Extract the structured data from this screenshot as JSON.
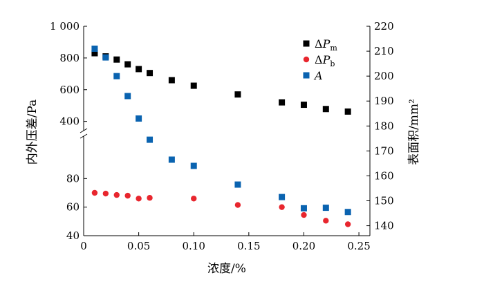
{
  "chart_data": {
    "type": "scatter",
    "title": "",
    "xlabel": "浓度/%",
    "ylabel_left": "内外压差/Pa",
    "ylabel_right": "表面积/mm²",
    "xlim": [
      0,
      0.26
    ],
    "x_ticks": [
      0,
      0.05,
      0.1,
      0.15,
      0.2,
      0.25
    ],
    "x_tick_labels": [
      "0",
      "0.05",
      "0.10",
      "0.15",
      "0.20",
      "0.25"
    ],
    "y_left_broken": true,
    "y_left_lower_range": [
      40,
      100
    ],
    "y_left_upper_range": [
      320,
      1000
    ],
    "y_left_ticks_lower": [
      40,
      60,
      80
    ],
    "y_left_ticks_upper": [
      400,
      600,
      800,
      1000
    ],
    "y_left_tick_labels": [
      "40",
      "60",
      "80",
      "400",
      "600",
      "800",
      "1 000"
    ],
    "y_right_range": [
      136,
      220
    ],
    "y_right_ticks": [
      140,
      150,
      160,
      170,
      180,
      190,
      200,
      210,
      220
    ],
    "y_right_tick_labels": [
      "140",
      "150",
      "160",
      "170",
      "180",
      "190",
      "200",
      "210",
      "220"
    ],
    "legend_position": "top-right",
    "legend": [
      {
        "symbol": "ΔP",
        "sub": "m",
        "marker": "square",
        "color": "#000000"
      },
      {
        "symbol": "ΔP",
        "sub": "b",
        "marker": "circle",
        "color": "#e8262e"
      },
      {
        "symbol": "A",
        "sub": "",
        "marker": "square",
        "color": "#0a63b0"
      }
    ],
    "series": [
      {
        "name": "ΔPm",
        "axis": "left",
        "marker": "square",
        "color": "#000000",
        "x": [
          0.01,
          0.02,
          0.03,
          0.04,
          0.05,
          0.06,
          0.08,
          0.1,
          0.14,
          0.18,
          0.2,
          0.22,
          0.24
        ],
        "y": [
          830,
          810,
          790,
          760,
          730,
          705,
          660,
          625,
          570,
          520,
          505,
          478,
          462
        ]
      },
      {
        "name": "ΔPb",
        "axis": "left",
        "marker": "circle",
        "color": "#e8262e",
        "x": [
          0.01,
          0.02,
          0.03,
          0.04,
          0.05,
          0.06,
          0.1,
          0.14,
          0.18,
          0.2,
          0.22,
          0.24
        ],
        "y": [
          70,
          69.5,
          68.5,
          68,
          66,
          66.5,
          66,
          61.5,
          60,
          54.5,
          50.5,
          48
        ]
      },
      {
        "name": "A",
        "axis": "right",
        "marker": "square",
        "color": "#0a63b0",
        "x": [
          0.01,
          0.02,
          0.03,
          0.04,
          0.05,
          0.06,
          0.08,
          0.1,
          0.14,
          0.18,
          0.2,
          0.22,
          0.24
        ],
        "y": [
          211,
          207.5,
          200,
          192,
          183,
          174.5,
          166.5,
          164,
          156.5,
          151.5,
          147,
          147.2,
          145.5
        ]
      }
    ]
  }
}
